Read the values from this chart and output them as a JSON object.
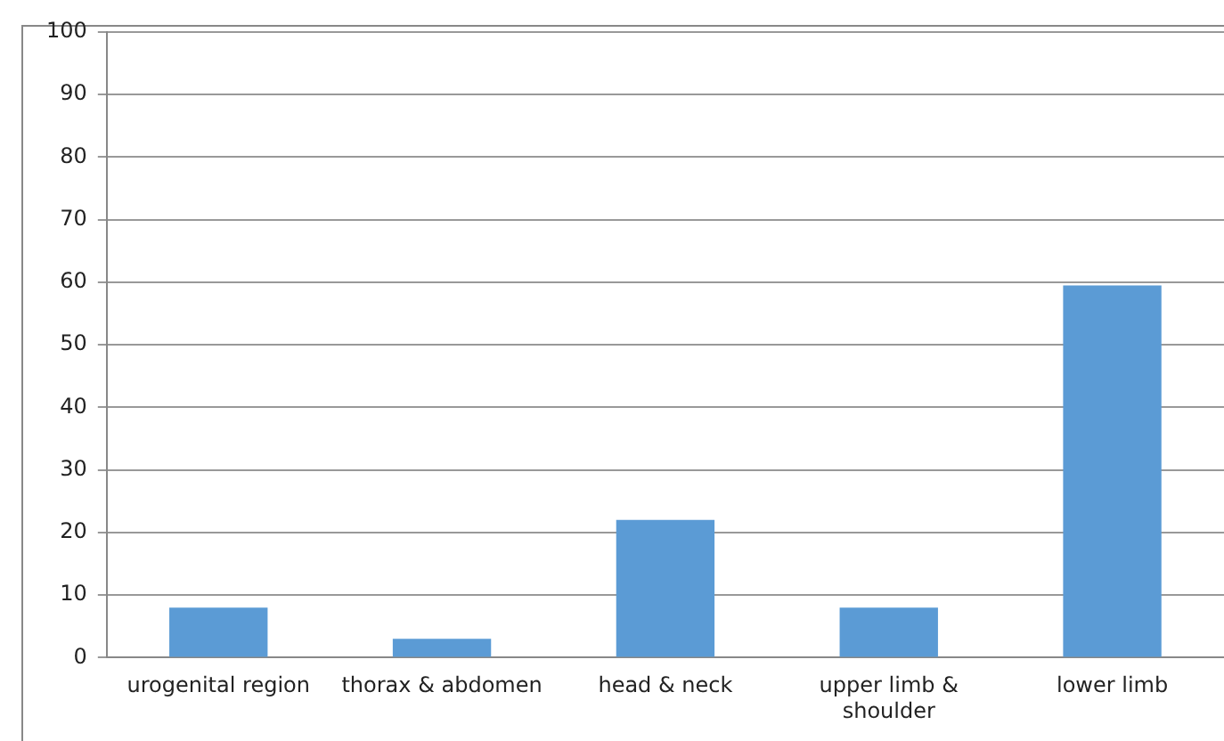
{
  "chart_data": {
    "type": "bar",
    "categories": [
      "urogenital region",
      "thorax & abdomen",
      "head & neck",
      "upper limb & shoulder",
      "lower limb"
    ],
    "values": [
      8,
      3,
      22,
      8,
      59.5
    ],
    "color": "#5b9bd5",
    "ylim": [
      0,
      100
    ],
    "yticks": [
      0,
      10,
      20,
      30,
      40,
      50,
      60,
      70,
      80,
      90,
      100
    ],
    "grid": "y",
    "legend": false
  }
}
